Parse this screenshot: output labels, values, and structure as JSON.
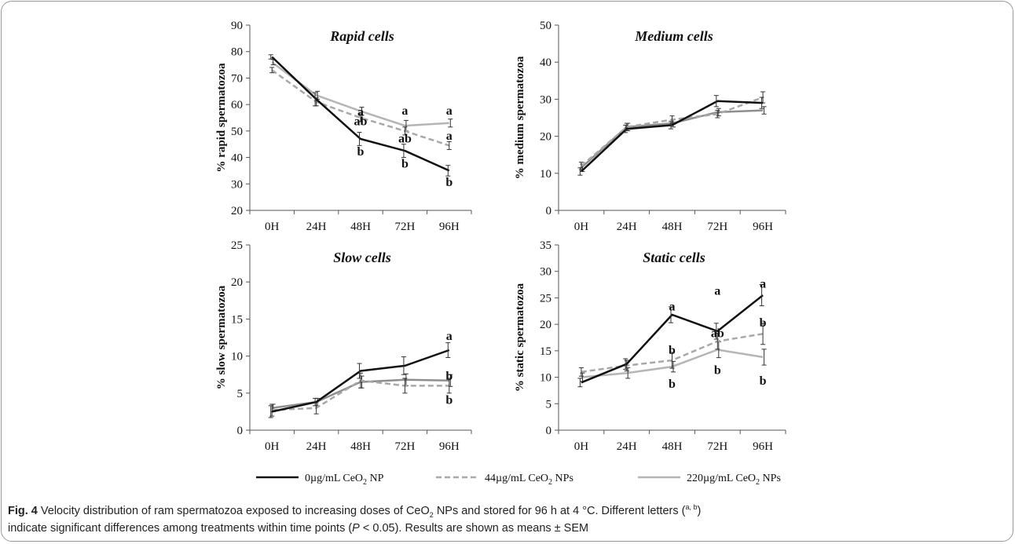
{
  "legend": {
    "items": [
      {
        "prefix": "0µg/mL CeO",
        "sub": "2",
        "suffix": " NP",
        "color": "#111111",
        "dash": "solid"
      },
      {
        "prefix": "44µg/mL CeO",
        "sub": "2",
        "suffix": " NPs",
        "color": "#a8a8a8",
        "dash": "dashed"
      },
      {
        "prefix": "220µg/mL CeO",
        "sub": "2",
        "suffix": " NPs",
        "color": "#b5b5b5",
        "dash": "solid"
      }
    ]
  },
  "caption": {
    "label": "Fig. 4",
    "text1": " Velocity distribution of ram spermatozoa exposed to increasing doses of CeO",
    "sub1": "2",
    "text2": " NPs and stored for 96 h at 4 °C. Different letters (",
    "sup1": "a, b",
    "text3": ")",
    "text4": "indicate significant differences among treatments within time points (",
    "italic_p": "P",
    "text5": " < 0.05). Results are shown as means ± SEM"
  },
  "chart_data": [
    {
      "type": "line",
      "title": "Rapid cells",
      "ylabel": "% rapid spermatozoa",
      "categories": [
        "0H",
        "24H",
        "48H",
        "72H",
        "96H"
      ],
      "ylim": [
        20,
        90
      ],
      "yticks": [
        20,
        30,
        40,
        50,
        60,
        70,
        80,
        90
      ],
      "series": [
        {
          "values": [
            78,
            62,
            47,
            42.5,
            35
          ],
          "err": [
            0.8,
            2.5,
            2.5,
            2.5,
            2
          ],
          "color": "#111111",
          "dash": "solid"
        },
        {
          "values": [
            73,
            61,
            55,
            50,
            44.5
          ],
          "err": [
            1,
            1.5,
            1.5,
            1.5,
            1.5
          ],
          "color": "#a8a8a8",
          "dash": "dashed"
        },
        {
          "values": [
            76,
            63.5,
            57.5,
            52,
            53
          ],
          "err": [
            1,
            1.5,
            1.5,
            2,
            1.5
          ],
          "color": "#b5b5b5",
          "dash": "solid"
        }
      ],
      "annotations": [
        {
          "x": "48H",
          "y": 57.5,
          "text": "a"
        },
        {
          "x": "48H",
          "y": 54,
          "text": "ab"
        },
        {
          "x": "48H",
          "y": 42.5,
          "text": "b"
        },
        {
          "x": "72H",
          "y": 58,
          "text": "a"
        },
        {
          "x": "72H",
          "y": 47.5,
          "text": "ab"
        },
        {
          "x": "72H",
          "y": 38,
          "text": "b"
        },
        {
          "x": "96H",
          "y": 58,
          "text": "a"
        },
        {
          "x": "96H",
          "y": 48.5,
          "text": "a"
        },
        {
          "x": "96H",
          "y": 31,
          "text": "b"
        }
      ]
    },
    {
      "type": "line",
      "title": "Medium cells",
      "ylabel": "% medium spermatozoa",
      "categories": [
        "0H",
        "24H",
        "48H",
        "72H",
        "96H"
      ],
      "ylim": [
        0,
        50
      ],
      "yticks": [
        0,
        10,
        20,
        30,
        40,
        50
      ],
      "series": [
        {
          "values": [
            10.5,
            22,
            23,
            29.5,
            29
          ],
          "err": [
            1,
            1,
            1,
            1.5,
            1.5
          ],
          "color": "#111111",
          "dash": "solid"
        },
        {
          "values": [
            12,
            22.5,
            24.5,
            26,
            30.5
          ],
          "err": [
            1,
            1,
            1,
            1,
            1.5
          ],
          "color": "#a8a8a8",
          "dash": "dashed"
        },
        {
          "values": [
            11.5,
            22.5,
            23.5,
            26.5,
            27
          ],
          "err": [
            1,
            1,
            1,
            1,
            1
          ],
          "color": "#8e8e8e",
          "dash": "solid"
        }
      ],
      "annotations": []
    },
    {
      "type": "line",
      "title": "Slow cells",
      "ylabel": "% slow spermatozoa",
      "categories": [
        "0H",
        "24H",
        "48H",
        "72H",
        "96H"
      ],
      "ylim": [
        0,
        25
      ],
      "yticks": [
        0,
        5,
        10,
        15,
        20,
        25
      ],
      "series": [
        {
          "values": [
            2.5,
            3.8,
            8,
            8.7,
            10.8
          ],
          "err": [
            0.8,
            0.5,
            1,
            1.2,
            1
          ],
          "color": "#111111",
          "dash": "solid"
        },
        {
          "values": [
            2.7,
            3,
            6.7,
            6,
            6
          ],
          "err": [
            0.8,
            0.8,
            1,
            1,
            1
          ],
          "color": "#a8a8a8",
          "dash": "dashed"
        },
        {
          "values": [
            3,
            3.8,
            6.5,
            6.8,
            6.7
          ],
          "err": [
            0.5,
            0.5,
            0.8,
            0.8,
            0.8
          ],
          "color": "#8e8e8e",
          "dash": "solid"
        }
      ],
      "annotations": [
        {
          "x": "96H",
          "y": 12.8,
          "text": "a"
        },
        {
          "x": "96H",
          "y": 7.4,
          "text": "b"
        },
        {
          "x": "96H",
          "y": 4.2,
          "text": "b"
        }
      ]
    },
    {
      "type": "line",
      "title": "Static cells",
      "ylabel": "% static spermatozoa",
      "categories": [
        "0H",
        "24H",
        "48H",
        "72H",
        "96H"
      ],
      "ylim": [
        0,
        35
      ],
      "yticks": [
        0,
        5,
        10,
        15,
        20,
        25,
        30,
        35
      ],
      "series": [
        {
          "values": [
            9,
            12.5,
            21.8,
            18.7,
            25.5
          ],
          "err": [
            0.8,
            1,
            1.5,
            1.5,
            2
          ],
          "color": "#111111",
          "dash": "solid"
        },
        {
          "values": [
            11,
            12.2,
            13.2,
            16.8,
            18.2
          ],
          "err": [
            0.8,
            1,
            1.5,
            1.5,
            2
          ],
          "color": "#a8a8a8",
          "dash": "dashed"
        },
        {
          "values": [
            10,
            10.8,
            12,
            15.2,
            13.8
          ],
          "err": [
            0.8,
            1,
            1,
            1.5,
            1.5
          ],
          "color": "#b5b5b5",
          "dash": "solid"
        }
      ],
      "annotations": [
        {
          "x": "48H",
          "y": 23.5,
          "text": "a"
        },
        {
          "x": "48H",
          "y": 15.3,
          "text": "b"
        },
        {
          "x": "48H",
          "y": 8.9,
          "text": "b"
        },
        {
          "x": "72H",
          "y": 26.5,
          "text": "a"
        },
        {
          "x": "72H",
          "y": 18.5,
          "text": "ab"
        },
        {
          "x": "72H",
          "y": 11.5,
          "text": "b"
        },
        {
          "x": "96H",
          "y": 27.8,
          "text": "a"
        },
        {
          "x": "96H",
          "y": 20.5,
          "text": "b"
        },
        {
          "x": "96H",
          "y": 9.5,
          "text": "b"
        }
      ]
    }
  ]
}
